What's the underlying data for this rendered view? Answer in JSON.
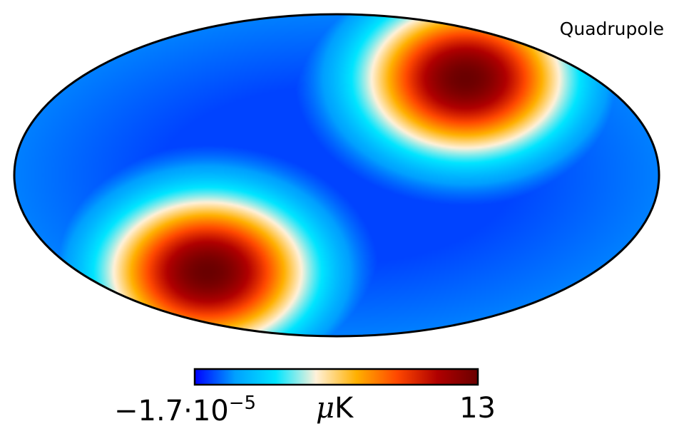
{
  "chart_data": {
    "type": "heatmap",
    "title": "Quadrupole",
    "projection": "mollweide",
    "colormap": "planck",
    "colormap_stops": [
      "#0000ff",
      "#00a0ff",
      "#00e5ff",
      "#fff1d9",
      "#ffb000",
      "#ff4800",
      "#b00000",
      "#6a0000"
    ],
    "colorbar": {
      "min_label": "−1.7·10",
      "min_exponent": "−5",
      "max_label": "13",
      "unit": "μK",
      "unit_mu": "μ",
      "unit_rest": "K",
      "range": [
        -1.7e-05,
        13
      ]
    },
    "features": [
      {
        "kind": "hot-spot",
        "position": "upper-right"
      },
      {
        "kind": "hot-spot",
        "position": "lower-left"
      },
      {
        "kind": "cold-region",
        "position": "diagonal band from upper-left to lower-right"
      }
    ]
  }
}
